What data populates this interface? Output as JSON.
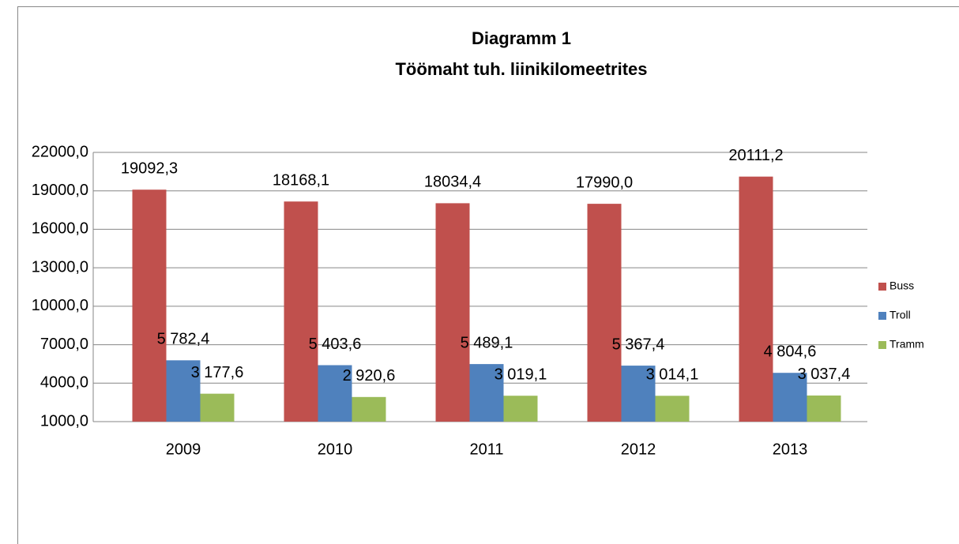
{
  "chart_data": {
    "type": "bar",
    "title": "Diagramm 1",
    "subtitle": "Töömaht tuh. liinikilomeetrites",
    "categories": [
      "2009",
      "2010",
      "2011",
      "2012",
      "2013"
    ],
    "series": [
      {
        "name": "Buss",
        "color": "#c0504d",
        "values": [
          19092.3,
          18168.1,
          18034.4,
          17990.0,
          20111.2
        ],
        "value_labels": [
          "19092,3",
          "18168,1",
          "18034,4",
          "17990,0",
          "20111,2"
        ]
      },
      {
        "name": "Troll",
        "color": "#4f81bd",
        "values": [
          5782.4,
          5403.6,
          5489.1,
          5367.4,
          4804.6
        ],
        "value_labels": [
          "5 782,4",
          "5 403,6",
          "5 489,1",
          "5 367,4",
          "4 804,6"
        ]
      },
      {
        "name": "Tramm",
        "color": "#9bbb59",
        "values": [
          3177.6,
          2920.6,
          3019.1,
          3014.1,
          3037.4
        ],
        "value_labels": [
          "3 177,6",
          "2 920,6",
          "3 019,1",
          "3 014,1",
          "3 037,4"
        ]
      }
    ],
    "ylim": [
      1000,
      22000
    ],
    "yticks": [
      {
        "value": 1000,
        "label": "1000,0"
      },
      {
        "value": 4000,
        "label": "4000,0"
      },
      {
        "value": 7000,
        "label": "7000,0"
      },
      {
        "value": 10000,
        "label": "10000,0"
      },
      {
        "value": 13000,
        "label": "13000,0"
      },
      {
        "value": 16000,
        "label": "16000,0"
      },
      {
        "value": 19000,
        "label": "19000,0"
      },
      {
        "value": 22000,
        "label": "22000,0"
      }
    ],
    "grid": true,
    "legend": "right"
  }
}
